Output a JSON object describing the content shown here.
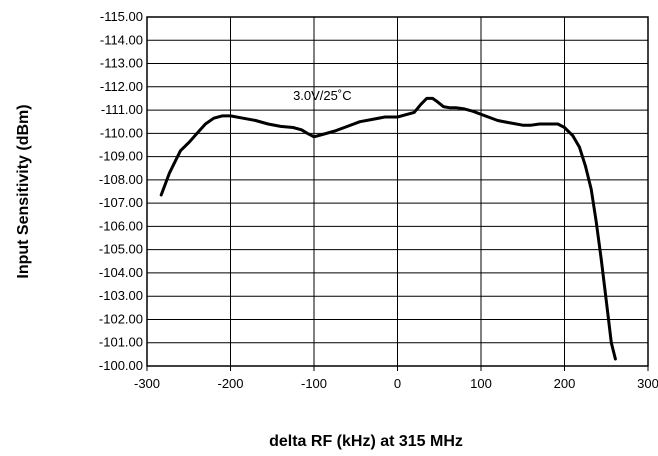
{
  "chart_data": {
    "type": "line",
    "title": "",
    "xlabel": "delta RF (kHz) at 315 MHz",
    "ylabel": "Input Sensitivity (dBm)",
    "xlim": [
      -300,
      300
    ],
    "ylim": [
      -100,
      -115
    ],
    "grid": true,
    "x_ticks": [
      "-300",
      "-200",
      "-100",
      "0",
      "100",
      "200",
      "300"
    ],
    "y_ticks": [
      "-100.00",
      "-101.00",
      "-102.00",
      "-103.00",
      "-104.00",
      "-105.00",
      "-106.00",
      "-107.00",
      "-108.00",
      "-109.00",
      "-110.00",
      "-111.00",
      "-112.00",
      "-113.00",
      "-114.00",
      "-115.00"
    ],
    "annotations": [
      {
        "text": "3.0V/25˚C",
        "x": -90,
        "y": -111.65
      }
    ],
    "series": [
      {
        "x": [
          -283,
          -273,
          -260,
          -250,
          -240,
          -230,
          -220,
          -210,
          -200,
          -185,
          -170,
          -155,
          -140,
          -125,
          -115,
          -108,
          -100,
          -90,
          -75,
          -60,
          -45,
          -30,
          -15,
          0,
          10,
          20,
          28,
          35,
          42,
          48,
          55,
          62,
          70,
          80,
          90,
          105,
          120,
          135,
          150,
          160,
          170,
          180,
          192,
          200,
          210,
          218,
          225,
          232,
          238,
          244,
          250,
          256,
          261
        ],
        "y": [
          -107.35,
          -108.3,
          -109.25,
          -109.6,
          -110.0,
          -110.4,
          -110.65,
          -110.75,
          -110.75,
          -110.65,
          -110.55,
          -110.4,
          -110.3,
          -110.25,
          -110.15,
          -110.0,
          -109.85,
          -109.95,
          -110.1,
          -110.3,
          -110.5,
          -110.6,
          -110.7,
          -110.7,
          -110.8,
          -110.9,
          -111.25,
          -111.5,
          -111.5,
          -111.35,
          -111.15,
          -111.1,
          -111.1,
          -111.05,
          -110.95,
          -110.75,
          -110.55,
          -110.45,
          -110.35,
          -110.35,
          -110.4,
          -110.4,
          -110.4,
          -110.25,
          -109.9,
          -109.4,
          -108.6,
          -107.6,
          -106.2,
          -104.6,
          -102.8,
          -101.0,
          -99.6
        ]
      }
    ]
  }
}
